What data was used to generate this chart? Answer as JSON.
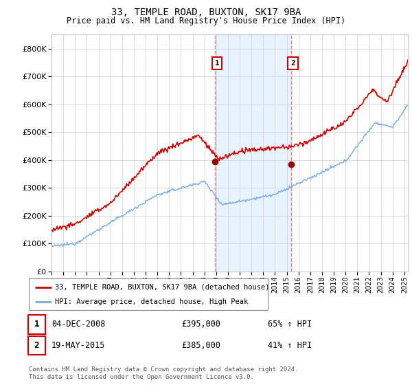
{
  "title": "33, TEMPLE ROAD, BUXTON, SK17 9BA",
  "subtitle": "Price paid vs. HM Land Registry's House Price Index (HPI)",
  "hpi_label": "HPI: Average price, detached house, High Peak",
  "property_label": "33, TEMPLE ROAD, BUXTON, SK17 9BA (detached house)",
  "sale1_date": "04-DEC-2008",
  "sale1_price": "£395,000",
  "sale1_hpi": "65% ↑ HPI",
  "sale2_date": "19-MAY-2015",
  "sale2_price": "£385,000",
  "sale2_hpi": "41% ↑ HPI",
  "footnote": "Contains HM Land Registry data © Crown copyright and database right 2024.\nThis data is licensed under the Open Government Licence v3.0.",
  "sale1_year": 2008.92,
  "sale2_year": 2015.38,
  "sale1_price_val": 395000,
  "sale2_price_val": 385000,
  "property_color": "#cc0000",
  "hpi_color": "#7aace0",
  "sale_dot_color": "#990000",
  "vline_color": "#dd8888",
  "shade_color": "#ddeeff",
  "ylim": [
    0,
    850000
  ],
  "yticks": [
    0,
    100000,
    200000,
    300000,
    400000,
    500000,
    600000,
    700000,
    800000
  ],
  "xlim_start": 1995.0,
  "xlim_end": 2025.3,
  "xticks": [
    1995,
    1996,
    1997,
    1998,
    1999,
    2000,
    2001,
    2002,
    2003,
    2004,
    2005,
    2006,
    2007,
    2008,
    2009,
    2010,
    2011,
    2012,
    2013,
    2014,
    2015,
    2016,
    2017,
    2018,
    2019,
    2020,
    2021,
    2022,
    2023,
    2024,
    2025
  ]
}
